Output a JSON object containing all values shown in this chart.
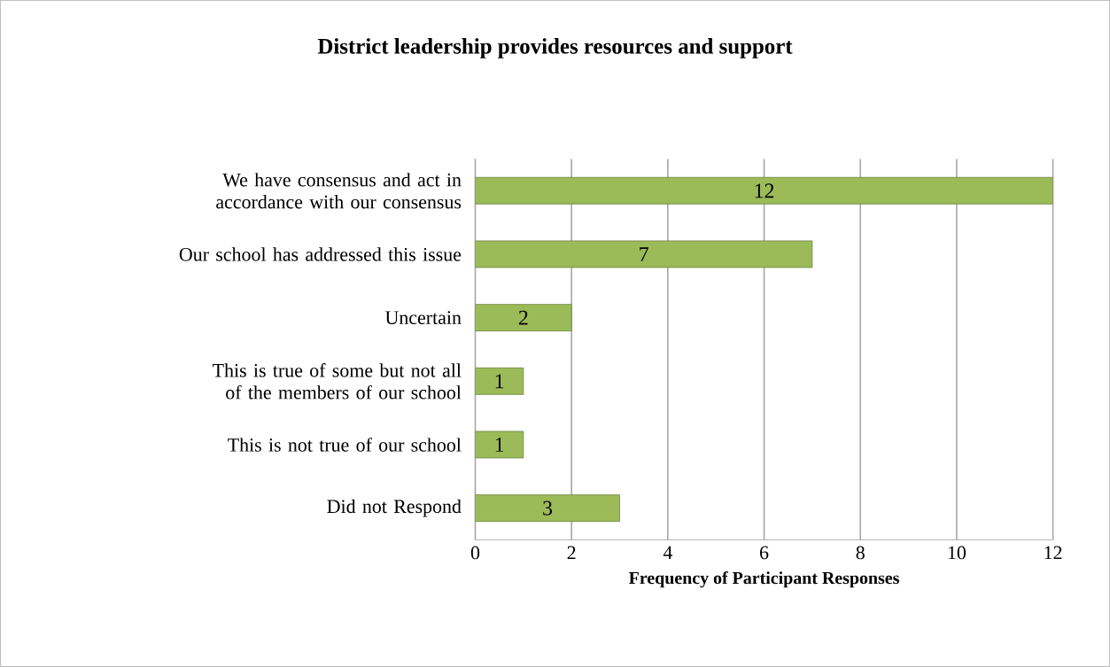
{
  "chart_data": {
    "type": "bar",
    "orientation": "horizontal",
    "title": "District leadership provides resources and support",
    "xlabel": "Frequency of Participant Responses",
    "categories": [
      "We have consensus and act in accordance with our consensus",
      "Our school has addressed this issue",
      "Uncertain",
      "This is true of some but not all of the members of our school",
      "This is not true of our school",
      "Did not Respond"
    ],
    "values": [
      12,
      7,
      2,
      1,
      1,
      3
    ],
    "color": "#9bbb59",
    "xlim": [
      0,
      12
    ],
    "xticks": [
      0,
      2,
      4,
      6,
      8,
      10,
      12
    ],
    "grid": "x",
    "data_labels": true
  }
}
